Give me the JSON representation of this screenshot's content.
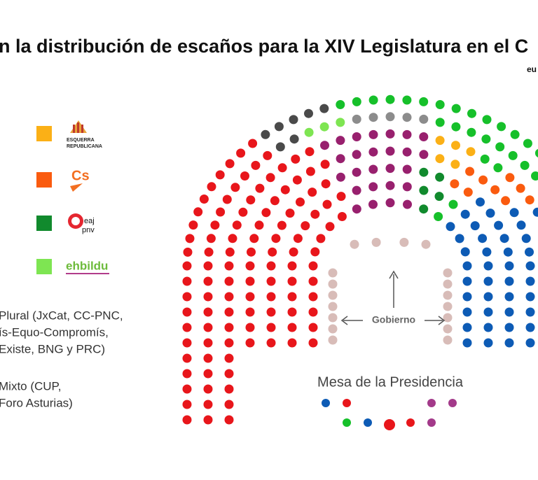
{
  "header": {
    "title": "n la distribución de escaños para la XIV Legislatura en el C",
    "source": "eu"
  },
  "legend": {
    "erc": [
      "ESQUERRA",
      "REPUBLICANA"
    ],
    "cs": "Cs",
    "pnv": [
      "eaj",
      "pnv"
    ],
    "bildu": "ehbildu"
  },
  "groups": {
    "plural": [
      "Plural (JxCat, CC-PNC,",
      "ís-Equo-Compromís,",
      "Existe, BNG y PRC)"
    ],
    "mixto": [
      "Mixto (CUP,",
      "Foro Asturias)"
    ]
  },
  "hemicycle": {
    "gobierno": "Gobierno",
    "mesa": "Mesa de la Presidencia"
  }
}
